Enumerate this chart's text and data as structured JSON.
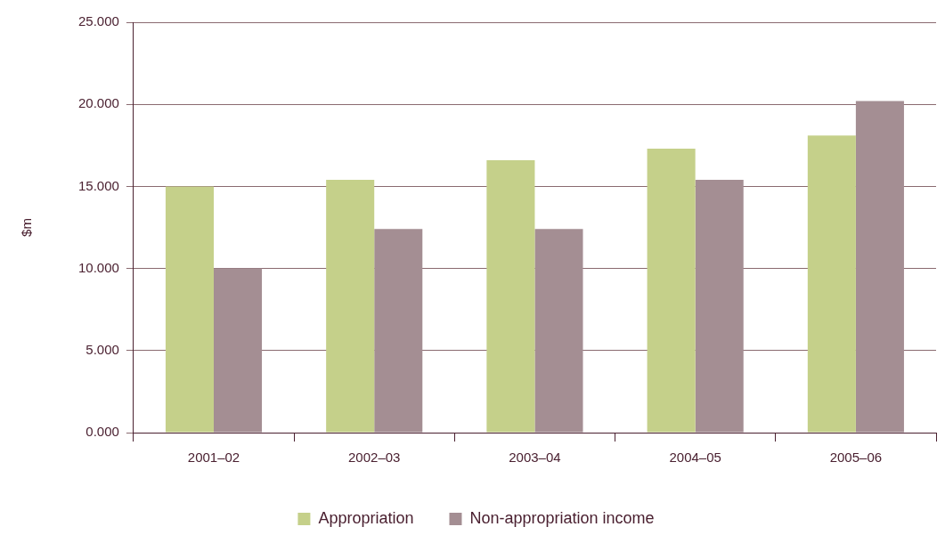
{
  "chart_data": {
    "type": "bar",
    "ylabel": "$m",
    "categories": [
      "2001–02",
      "2002–03",
      "2003–04",
      "2004–05",
      "2005–06"
    ],
    "series": [
      {
        "name": "Appropriation",
        "color": "#c5d08a",
        "values": [
          15.0,
          15.4,
          16.6,
          17.3,
          18.1
        ]
      },
      {
        "name": "Non-appropriation income",
        "color": "#a48e93",
        "values": [
          10.0,
          12.4,
          12.4,
          15.4,
          20.2
        ]
      }
    ],
    "ylim": [
      0,
      25
    ],
    "yticks": [
      {
        "value": 0,
        "label": "0.000"
      },
      {
        "value": 5,
        "label": "5.000"
      },
      {
        "value": 10,
        "label": "10.000"
      },
      {
        "value": 15,
        "label": "15.000"
      },
      {
        "value": 20,
        "label": "20.000"
      },
      {
        "value": 25,
        "label": "25.000"
      }
    ],
    "grid": "y",
    "legend": "bottom"
  }
}
